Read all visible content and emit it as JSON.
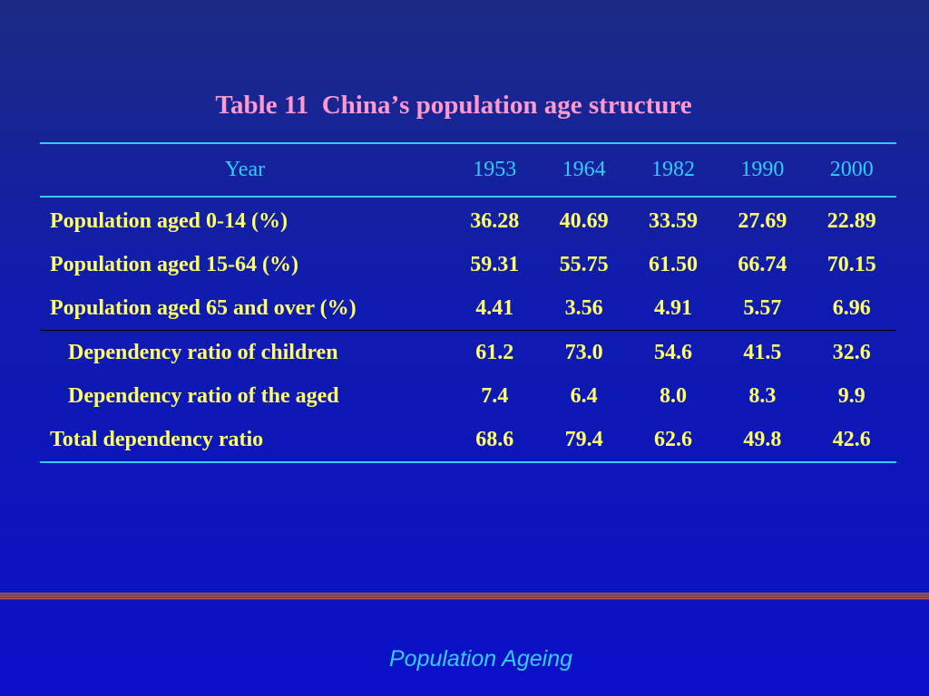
{
  "slide": {
    "title": "Table 11  Chinaʼs population age structure",
    "footer": "Population Ageing"
  },
  "table": {
    "header": {
      "label": "Year",
      "years": [
        "1953",
        "1964",
        "1982",
        "1990",
        "2000"
      ]
    },
    "rows": [
      {
        "label": "Population aged 0-14 (%)",
        "values": [
          "36.28",
          "40.69",
          "33.59",
          "27.69",
          "22.89"
        ]
      },
      {
        "label": "Population aged 15-64 (%)",
        "values": [
          "59.31",
          "55.75",
          "61.50",
          "66.74",
          "70.15"
        ]
      },
      {
        "label": "Population aged 65 and over (%)",
        "values": [
          "4.41",
          "3.56",
          "4.91",
          "5.57",
          "6.96"
        ]
      },
      {
        "label": "Dependency ratio of children",
        "values": [
          "61.2",
          "73.0",
          "54.6",
          "41.5",
          "32.6"
        ]
      },
      {
        "label": "Dependency ratio of the aged",
        "values": [
          "7.4",
          "6.4",
          "8.0",
          "8.3",
          "9.9"
        ]
      },
      {
        "label": "Total dependency ratio",
        "values": [
          "68.6",
          "79.4",
          "62.6",
          "49.8",
          "42.6"
        ]
      }
    ]
  },
  "colors": {
    "title": "#ff99cc",
    "header_text": "#33ccff",
    "cell_text": "#ffff66",
    "rule": "#33ccff",
    "footer_text": "#33ccff"
  }
}
